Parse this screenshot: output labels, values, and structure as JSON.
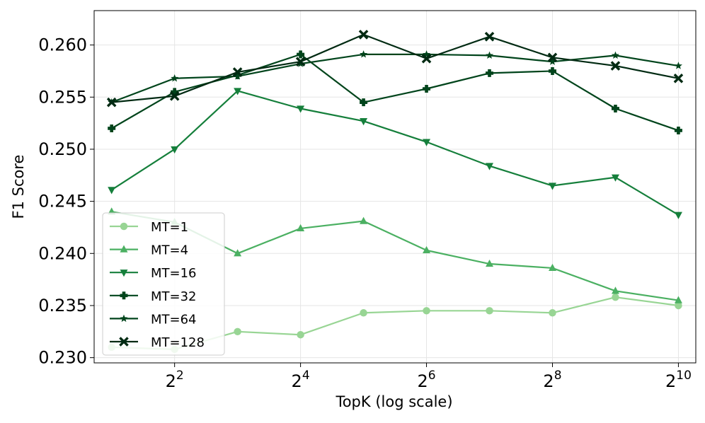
{
  "chart_data": {
    "type": "line",
    "xlabel": "TopK (log scale)",
    "ylabel": "F1 Score",
    "x_scale": "log2",
    "x": [
      2,
      4,
      8,
      16,
      32,
      64,
      128,
      256,
      512,
      1024
    ],
    "xlim": [
      1.65,
      1240
    ],
    "ylim": [
      0.2295,
      0.2633
    ],
    "x_ticks": [
      {
        "value": 4,
        "base": "2",
        "exp": "2"
      },
      {
        "value": 16,
        "base": "2",
        "exp": "4"
      },
      {
        "value": 64,
        "base": "2",
        "exp": "6"
      },
      {
        "value": 256,
        "base": "2",
        "exp": "8"
      },
      {
        "value": 1024,
        "base": "2",
        "exp": "10"
      }
    ],
    "y_ticks": [
      {
        "value": 0.23,
        "label": "0.230"
      },
      {
        "value": 0.235,
        "label": "0.235"
      },
      {
        "value": 0.24,
        "label": "0.240"
      },
      {
        "value": 0.245,
        "label": "0.245"
      },
      {
        "value": 0.25,
        "label": "0.250"
      },
      {
        "value": 0.255,
        "label": "0.255"
      },
      {
        "value": 0.26,
        "label": "0.260"
      }
    ],
    "grid": true,
    "legend_position": "bottom-left",
    "series": [
      {
        "name": "MT=1",
        "color": "#98d594",
        "marker": "circle",
        "values": [
          0.231,
          0.2308,
          0.2325,
          0.2322,
          0.2343,
          0.2345,
          0.2345,
          0.2343,
          0.2358,
          0.235
        ]
      },
      {
        "name": "MT=4",
        "color": "#4bb062",
        "marker": "triangle-up",
        "values": [
          0.244,
          0.243,
          0.24,
          0.2424,
          0.2431,
          0.2403,
          0.239,
          0.2386,
          0.2364,
          0.2355
        ]
      },
      {
        "name": "MT=16",
        "color": "#157f3b",
        "marker": "triangle-down",
        "values": [
          0.2461,
          0.25,
          0.2556,
          0.2539,
          0.2527,
          0.2507,
          0.2484,
          0.2465,
          0.2473,
          0.2437
        ]
      },
      {
        "name": "MT=32",
        "color": "#00441b",
        "marker": "plus",
        "values": [
          0.252,
          0.2555,
          0.2571,
          0.2591,
          0.2545,
          0.2558,
          0.2573,
          0.2575,
          0.2539,
          0.2518
        ]
      },
      {
        "name": "MT=64",
        "color": "#00441b",
        "marker": "star",
        "values": [
          0.2545,
          0.2568,
          0.257,
          0.2582,
          0.2591,
          0.2591,
          0.259,
          0.2584,
          0.259,
          0.258
        ]
      },
      {
        "name": "MT=128",
        "color": "#002a12",
        "marker": "x",
        "values": [
          0.2545,
          0.2551,
          0.2574,
          0.2584,
          0.261,
          0.2587,
          0.2608,
          0.2588,
          0.258,
          0.2568
        ]
      }
    ]
  }
}
